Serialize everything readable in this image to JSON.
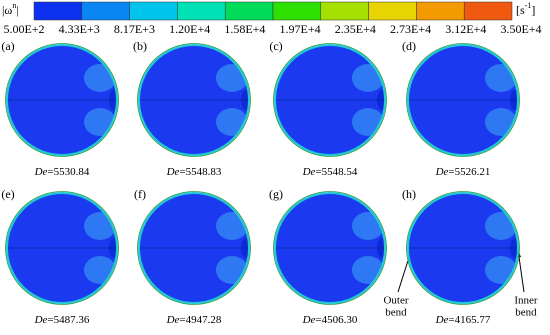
{
  "colorbar": {
    "symbol_base": "|ω",
    "symbol_sup": "n",
    "symbol_end": "|",
    "unit_base": "[s",
    "unit_sup": "-1",
    "unit_end": "]",
    "ticks": [
      "5.00E+2",
      "4.33E+3",
      "8.17E+3",
      "1.20E+4",
      "1.58E+4",
      "1.97E+4",
      "2.35E+4",
      "2.73E+4",
      "3.12E+4",
      "3.50E+4"
    ]
  },
  "panels": [
    {
      "letter": "(a)",
      "symbol": "De",
      "value": "=5530.84"
    },
    {
      "letter": "(b)",
      "symbol": "De",
      "value": "=5548.83"
    },
    {
      "letter": "(c)",
      "symbol": "De",
      "value": "=5548.54"
    },
    {
      "letter": "(d)",
      "symbol": "De",
      "value": "=5526.21"
    },
    {
      "letter": "(e)",
      "symbol": "De",
      "value": "=5487.36"
    },
    {
      "letter": "(f)",
      "symbol": "De",
      "value": "=4947.28"
    },
    {
      "letter": "(g)",
      "symbol": "De",
      "value": "=4506.30"
    },
    {
      "letter": "(h)",
      "symbol": "De",
      "value": "=4165.77"
    }
  ],
  "annotations": {
    "outer": {
      "line1": "Outer",
      "line2": "bend"
    },
    "inner": {
      "line1": "Inner",
      "line2": "bend"
    }
  }
}
